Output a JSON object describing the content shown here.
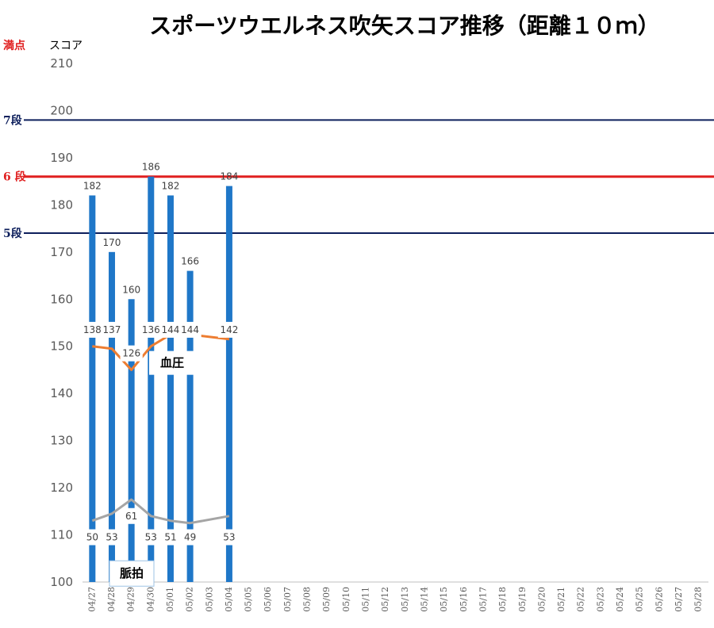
{
  "chart_data": {
    "type": "bar",
    "title": "スポーツウエルネス吹矢スコア推移（距離１０ｍ）",
    "ylabel": "スコア",
    "ylim": [
      100,
      210
    ],
    "ytick_step": 10,
    "grid": false,
    "categories": [
      "04/27",
      "04/28",
      "04/29",
      "04/30",
      "05/01",
      "05/02",
      "05/03",
      "05/04",
      "05/05",
      "05/06",
      "05/07",
      "05/08",
      "05/09",
      "05/10",
      "05/11",
      "05/12",
      "05/13",
      "05/14",
      "05/15",
      "05/16",
      "05/17",
      "05/18",
      "05/19",
      "05/20",
      "05/21",
      "05/22",
      "05/23",
      "05/24",
      "05/25",
      "05/26",
      "05/27",
      "05/28"
    ],
    "series": [
      {
        "name": "",
        "type": "bar",
        "color": "#1F77C8",
        "values": [
          182,
          170,
          160,
          186,
          182,
          166,
          null,
          184,
          null,
          null,
          null,
          null,
          null,
          null,
          null,
          null,
          null,
          null,
          null,
          null,
          null,
          null,
          null,
          null,
          null,
          null,
          null,
          null,
          null,
          null,
          null,
          null
        ]
      },
      {
        "name": "血圧",
        "type": "line",
        "color": "#ED7D31",
        "values": [
          138,
          137,
          126,
          136,
          144,
          144,
          null,
          142,
          null,
          null,
          null,
          null,
          null,
          null,
          null,
          null,
          null,
          null,
          null,
          null,
          null,
          null,
          null,
          null,
          null,
          null,
          null,
          null,
          null,
          null,
          null,
          null
        ],
        "plot_y": [
          150,
          149.5,
          145,
          150,
          152.5,
          152.5,
          null,
          151.5
        ]
      },
      {
        "name": "脈拍",
        "type": "line",
        "color": "#A5A5A5",
        "values": [
          50,
          53,
          61,
          53,
          51,
          49,
          null,
          53,
          null,
          null,
          null,
          null,
          null,
          null,
          null,
          null,
          null,
          null,
          null,
          null,
          null,
          null,
          null,
          null,
          null,
          null,
          null,
          null,
          null,
          null,
          null,
          null
        ],
        "plot_y": [
          113,
          114.5,
          117.5,
          114,
          113,
          112.5,
          null,
          114
        ]
      }
    ],
    "reference_lines": [
      {
        "label": "満点",
        "y": 210,
        "color": "#E02020",
        "line": false
      },
      {
        "label": "7段",
        "y": 198,
        "color": "#0D1F5C",
        "line": true
      },
      {
        "label": "6 段",
        "y": 186,
        "color": "#E02020",
        "line": true
      },
      {
        "label": "5段",
        "y": 174,
        "color": "#0D1F5C",
        "line": true
      }
    ]
  }
}
